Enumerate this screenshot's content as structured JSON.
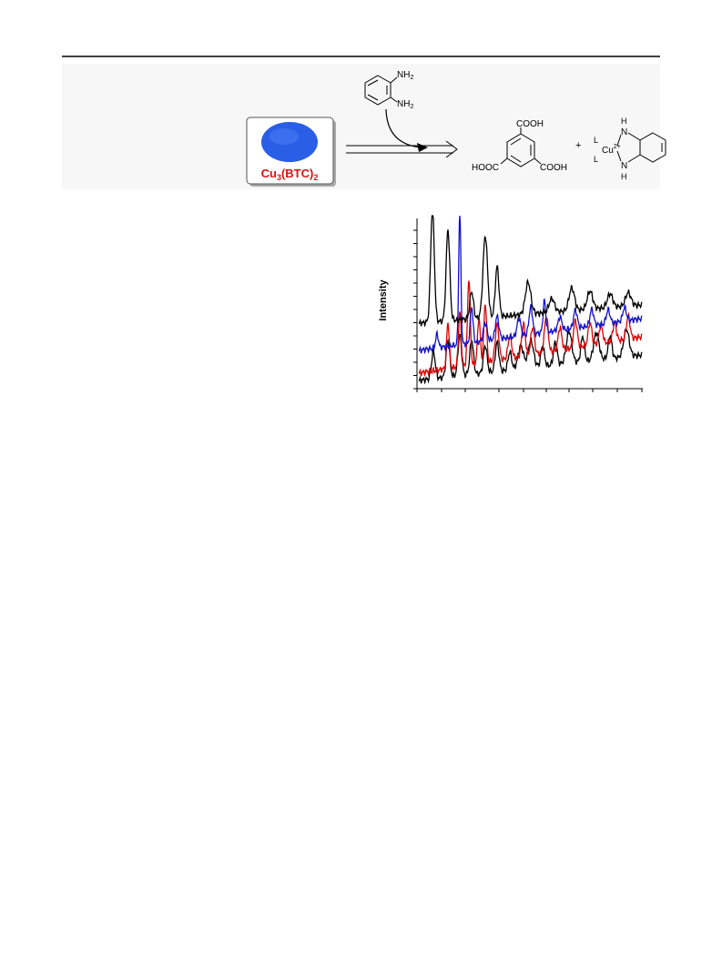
{
  "scheme": {
    "reactant": {
      "name": "Cu",
      "sub1": "3",
      "mid": "(BTC)",
      "sub2": "2"
    },
    "reagent": [
      {
        "text": "NH",
        "sub": "2"
      },
      {
        "text": "NH",
        "sub": "2"
      }
    ],
    "product_acid": {
      "top": "COOH",
      "left": "HOOC",
      "right": "COOH"
    },
    "plus": "+",
    "complex": {
      "ligand_top": "L",
      "ligand_bottom": "L",
      "metal": "Cu",
      "charge": "2+",
      "n_top": "N",
      "h_top": "H",
      "n_bottom": "N",
      "h_bottom": "H"
    }
  },
  "plot": {
    "ylabel": "Intensity"
  }
}
